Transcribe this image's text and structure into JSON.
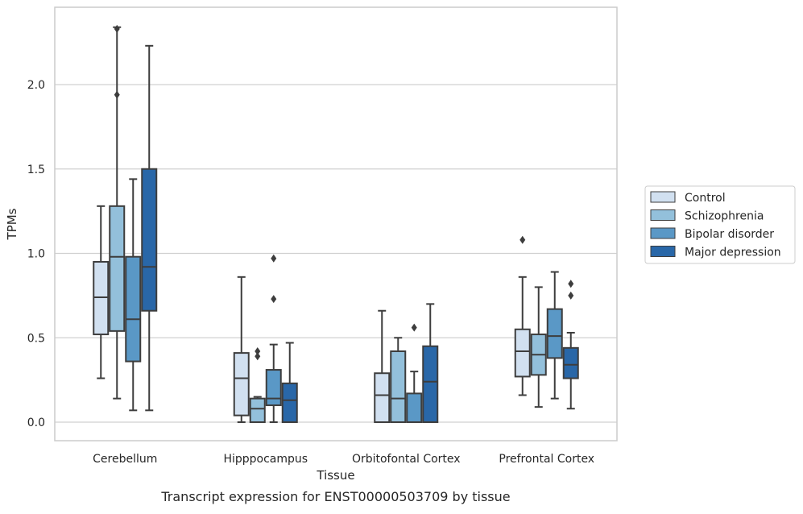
{
  "chart_data": {
    "type": "box",
    "ylabel": "TPMs",
    "xlabel": "Tissue",
    "caption": "Transcript expression for ENST00000503709 by tissue",
    "ylim": [
      -0.11,
      2.46
    ],
    "yticks": [
      0.0,
      0.5,
      1.0,
      1.5,
      2.0
    ],
    "ytick_labels": [
      "0.0",
      "0.5",
      "1.0",
      "1.5",
      "2.0"
    ],
    "grid": "horizontal",
    "legend_position": "right",
    "categories": [
      "Cerebellum",
      "Hipppocampus",
      "Orbitofontal Cortex",
      "Prefrontal Cortex"
    ],
    "series": [
      {
        "name": "Control",
        "color": "#d1e0f0",
        "boxes": [
          {
            "whislo": 0.26,
            "q1": 0.52,
            "med": 0.74,
            "q3": 0.95,
            "whishi": 1.28,
            "fliers": []
          },
          {
            "whislo": 0.0,
            "q1": 0.04,
            "med": 0.26,
            "q3": 0.41,
            "whishi": 0.86,
            "fliers": []
          },
          {
            "whislo": 0.0,
            "q1": 0.0,
            "med": 0.16,
            "q3": 0.29,
            "whishi": 0.66,
            "fliers": []
          },
          {
            "whislo": 0.16,
            "q1": 0.27,
            "med": 0.42,
            "q3": 0.55,
            "whishi": 0.86,
            "fliers": [
              1.08
            ]
          }
        ]
      },
      {
        "name": "Schizophrenia",
        "color": "#93c0db",
        "boxes": [
          {
            "whislo": 0.14,
            "q1": 0.54,
            "med": 0.98,
            "q3": 1.28,
            "whishi": 2.34,
            "fliers": [
              2.33,
              1.94
            ]
          },
          {
            "whislo": 0.0,
            "q1": 0.0,
            "med": 0.08,
            "q3": 0.14,
            "whishi": 0.15,
            "fliers": [
              0.42,
              0.39
            ]
          },
          {
            "whislo": 0.0,
            "q1": 0.0,
            "med": 0.14,
            "q3": 0.42,
            "whishi": 0.5,
            "fliers": []
          },
          {
            "whislo": 0.09,
            "q1": 0.28,
            "med": 0.4,
            "q3": 0.52,
            "whishi": 0.8,
            "fliers": []
          }
        ]
      },
      {
        "name": "Bipolar disorder",
        "color": "#5a98c6",
        "boxes": [
          {
            "whislo": 0.07,
            "q1": 0.36,
            "med": 0.61,
            "q3": 0.98,
            "whishi": 1.44,
            "fliers": []
          },
          {
            "whislo": 0.0,
            "q1": 0.1,
            "med": 0.14,
            "q3": 0.31,
            "whishi": 0.46,
            "fliers": [
              0.97,
              0.73
            ]
          },
          {
            "whislo": 0.0,
            "q1": 0.0,
            "med": 0.0,
            "q3": 0.17,
            "whishi": 0.3,
            "fliers": [
              0.56
            ]
          },
          {
            "whislo": 0.14,
            "q1": 0.38,
            "med": 0.51,
            "q3": 0.67,
            "whishi": 0.89,
            "fliers": []
          }
        ]
      },
      {
        "name": "Major depression",
        "color": "#2967a8",
        "boxes": [
          {
            "whislo": 0.07,
            "q1": 0.66,
            "med": 0.92,
            "q3": 1.5,
            "whishi": 2.23,
            "fliers": []
          },
          {
            "whislo": 0.0,
            "q1": 0.0,
            "med": 0.13,
            "q3": 0.23,
            "whishi": 0.47,
            "fliers": []
          },
          {
            "whislo": 0.0,
            "q1": 0.0,
            "med": 0.24,
            "q3": 0.45,
            "whishi": 0.7,
            "fliers": []
          },
          {
            "whislo": 0.08,
            "q1": 0.26,
            "med": 0.34,
            "q3": 0.44,
            "whishi": 0.53,
            "fliers": [
              0.82,
              0.75
            ]
          }
        ]
      }
    ],
    "colors": {
      "edge": "#3d3d3d",
      "grid": "#d0d0d0",
      "frame": "#cccccc"
    }
  }
}
